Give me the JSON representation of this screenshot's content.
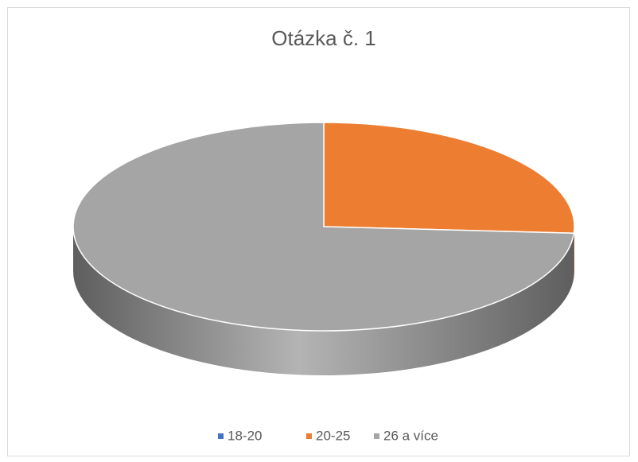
{
  "chart_data": {
    "type": "pie",
    "title": "Otázka č. 1",
    "categories": [
      "18-20",
      "20-25",
      "26 a více"
    ],
    "values": [
      0,
      26,
      74
    ],
    "colors": [
      "#4472c4",
      "#ed7d31",
      "#a5a5a5"
    ],
    "legend": "bottom"
  }
}
